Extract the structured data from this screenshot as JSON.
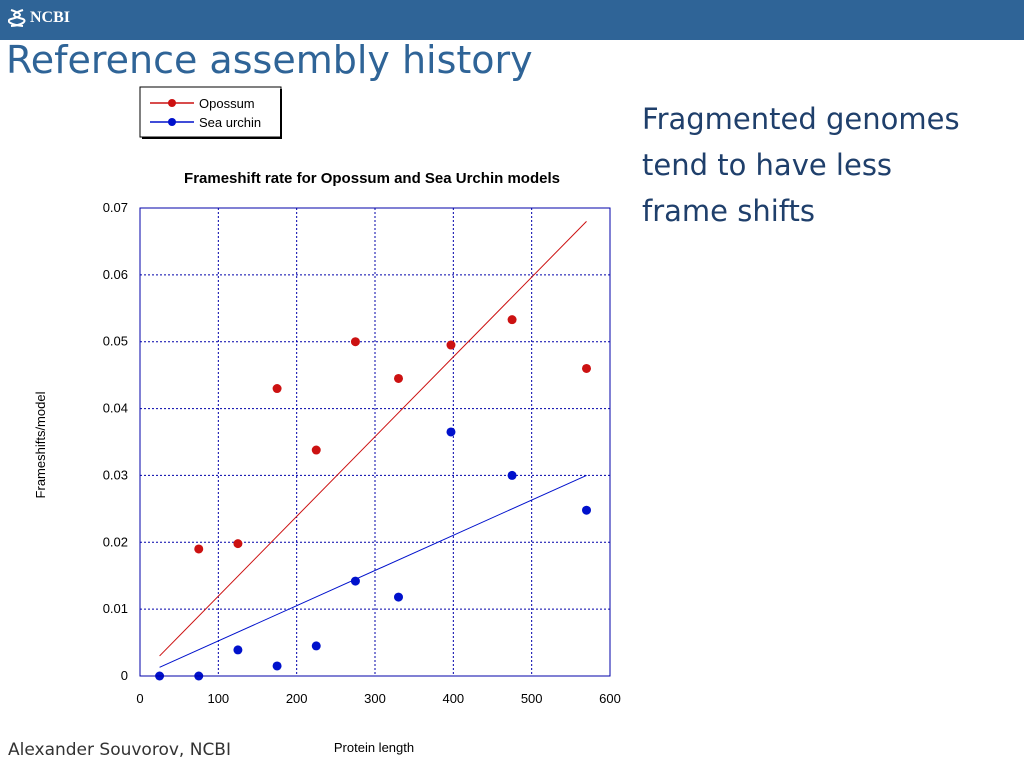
{
  "header": {
    "logo_text": "NCBI",
    "slide_title": "Reference assembly history"
  },
  "side_text": "Fragmented genomes\n tend to have less\nframe shifts",
  "footer": "Alexander Souvorov, NCBI",
  "colors": {
    "header_bar": "#2f6497",
    "title": "#2f6497",
    "side_text": "#1f3f6b",
    "grid": "#0000aa",
    "opossum": "#cc1111",
    "sea_urchin": "#0011cc"
  },
  "chart_data": {
    "type": "scatter",
    "title": "Frameshift rate for Opossum and Sea Urchin models",
    "xlabel": "Protein length",
    "ylabel": "Frameshifts/model",
    "xlim": [
      0,
      600
    ],
    "ylim": [
      0,
      0.07
    ],
    "x_ticks": [
      "0",
      "100",
      "200",
      "300",
      "400",
      "500",
      "600"
    ],
    "y_ticks": [
      "0",
      "0.01",
      "0.02",
      "0.03",
      "0.04",
      "0.05",
      "0.06",
      "0.07"
    ],
    "grid": true,
    "legend_position": "top-left outside",
    "series": [
      {
        "name": "Opossum",
        "color": "#cc1111",
        "x": [
          75,
          125,
          175,
          225,
          275,
          330,
          397,
          475,
          570
        ],
        "y": [
          0.019,
          0.0198,
          0.043,
          0.0338,
          0.05,
          0.0445,
          0.0495,
          0.0533,
          0.046
        ],
        "trend": [
          [
            25,
            0.003
          ],
          [
            570,
            0.068
          ]
        ]
      },
      {
        "name": "Sea urchin",
        "color": "#0011cc",
        "x": [
          25,
          75,
          125,
          175,
          225,
          275,
          330,
          397,
          475,
          570
        ],
        "y": [
          0.0,
          0.0,
          0.0039,
          0.0015,
          0.0045,
          0.0142,
          0.0118,
          0.0365,
          0.03,
          0.0248
        ],
        "trend": [
          [
            25,
            0.0013
          ],
          [
            570,
            0.03
          ]
        ]
      }
    ]
  }
}
